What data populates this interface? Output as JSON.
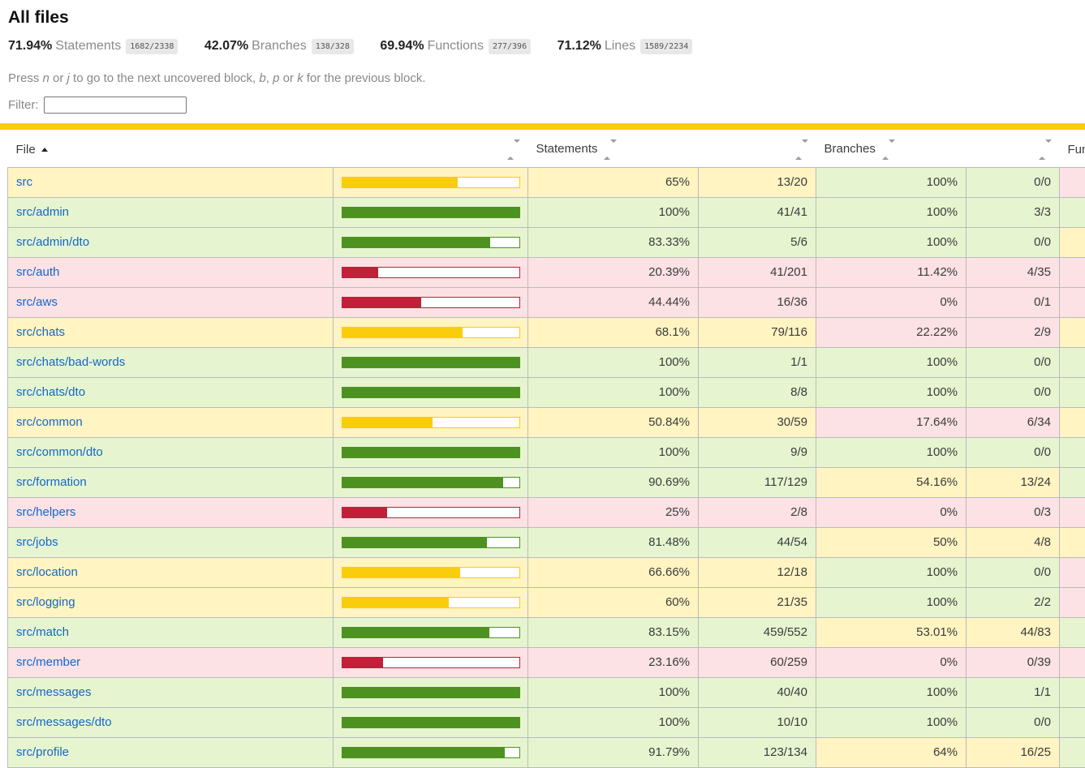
{
  "title": "All files",
  "summary": [
    {
      "pct": "71.94%",
      "label": "Statements",
      "fraction": "1682/2338"
    },
    {
      "pct": "42.07%",
      "label": "Branches",
      "fraction": "138/328"
    },
    {
      "pct": "69.94%",
      "label": "Functions",
      "fraction": "277/396"
    },
    {
      "pct": "71.12%",
      "label": "Lines",
      "fraction": "1589/2234"
    }
  ],
  "hint": {
    "parts": [
      "Press ",
      "n",
      " or ",
      "j",
      " to go to the next uncovered block, ",
      "b",
      ", ",
      "p",
      " or ",
      "k",
      " for the previous block."
    ]
  },
  "filter": {
    "label": "Filter:",
    "value": "",
    "placeholder": ""
  },
  "colors": {
    "status_line": "#F9CD0B",
    "bar_high": "#4D9221",
    "bar_medium": "#F9CD0B",
    "bar_low": "#C21F39",
    "row_high": "#E6F5D0",
    "row_medium": "#FFF4C2",
    "row_low": "#FCE1E5",
    "fraction_badge_bg": "#E8E8E8",
    "link_blue": "#1467C8"
  },
  "table": {
    "headers": {
      "file": "File",
      "statements": "Statements",
      "branches": "Branches",
      "functions": "Functions"
    },
    "rows": [
      {
        "file": "src",
        "cls": "medium",
        "bar_pct": 65,
        "statements": "65%",
        "statements_raw": "13/20",
        "branches_cls": "high",
        "branches": "100%",
        "branches_raw": "0/0",
        "functions_cls": "low"
      },
      {
        "file": "src/admin",
        "cls": "high",
        "bar_pct": 100,
        "statements": "100%",
        "statements_raw": "41/41",
        "branches_cls": "high",
        "branches": "100%",
        "branches_raw": "3/3",
        "functions_cls": "high"
      },
      {
        "file": "src/admin/dto",
        "cls": "high",
        "bar_pct": 83.33,
        "statements": "83.33%",
        "statements_raw": "5/6",
        "branches_cls": "high",
        "branches": "100%",
        "branches_raw": "0/0",
        "functions_cls": "medium"
      },
      {
        "file": "src/auth",
        "cls": "low",
        "bar_pct": 20.39,
        "statements": "20.39%",
        "statements_raw": "41/201",
        "branches_cls": "low",
        "branches": "11.42%",
        "branches_raw": "4/35",
        "functions_cls": "low"
      },
      {
        "file": "src/aws",
        "cls": "low",
        "bar_pct": 44.44,
        "statements": "44.44%",
        "statements_raw": "16/36",
        "branches_cls": "low",
        "branches": "0%",
        "branches_raw": "0/1",
        "functions_cls": "low"
      },
      {
        "file": "src/chats",
        "cls": "medium",
        "bar_pct": 68.1,
        "statements": "68.1%",
        "statements_raw": "79/116",
        "branches_cls": "low",
        "branches": "22.22%",
        "branches_raw": "2/9",
        "functions_cls": "medium"
      },
      {
        "file": "src/chats/bad-words",
        "cls": "high",
        "bar_pct": 100,
        "statements": "100%",
        "statements_raw": "1/1",
        "branches_cls": "high",
        "branches": "100%",
        "branches_raw": "0/0",
        "functions_cls": "high"
      },
      {
        "file": "src/chats/dto",
        "cls": "high",
        "bar_pct": 100,
        "statements": "100%",
        "statements_raw": "8/8",
        "branches_cls": "high",
        "branches": "100%",
        "branches_raw": "0/0",
        "functions_cls": "high"
      },
      {
        "file": "src/common",
        "cls": "medium",
        "bar_pct": 50.84,
        "statements": "50.84%",
        "statements_raw": "30/59",
        "branches_cls": "low",
        "branches": "17.64%",
        "branches_raw": "6/34",
        "functions_cls": "medium"
      },
      {
        "file": "src/common/dto",
        "cls": "high",
        "bar_pct": 100,
        "statements": "100%",
        "statements_raw": "9/9",
        "branches_cls": "high",
        "branches": "100%",
        "branches_raw": "0/0",
        "functions_cls": "high"
      },
      {
        "file": "src/formation",
        "cls": "high",
        "bar_pct": 90.69,
        "statements": "90.69%",
        "statements_raw": "117/129",
        "branches_cls": "medium",
        "branches": "54.16%",
        "branches_raw": "13/24",
        "functions_cls": "high"
      },
      {
        "file": "src/helpers",
        "cls": "low",
        "bar_pct": 25,
        "statements": "25%",
        "statements_raw": "2/8",
        "branches_cls": "low",
        "branches": "0%",
        "branches_raw": "0/3",
        "functions_cls": "low"
      },
      {
        "file": "src/jobs",
        "cls": "high",
        "bar_pct": 81.48,
        "statements": "81.48%",
        "statements_raw": "44/54",
        "branches_cls": "medium",
        "branches": "50%",
        "branches_raw": "4/8",
        "functions_cls": "medium"
      },
      {
        "file": "src/location",
        "cls": "medium",
        "bar_pct": 66.66,
        "statements": "66.66%",
        "statements_raw": "12/18",
        "branches_cls": "high",
        "branches": "100%",
        "branches_raw": "0/0",
        "functions_cls": "low"
      },
      {
        "file": "src/logging",
        "cls": "medium",
        "bar_pct": 60,
        "statements": "60%",
        "statements_raw": "21/35",
        "branches_cls": "high",
        "branches": "100%",
        "branches_raw": "2/2",
        "functions_cls": "low"
      },
      {
        "file": "src/match",
        "cls": "high",
        "bar_pct": 83.15,
        "statements": "83.15%",
        "statements_raw": "459/552",
        "branches_cls": "medium",
        "branches": "53.01%",
        "branches_raw": "44/83",
        "functions_cls": "high"
      },
      {
        "file": "src/member",
        "cls": "low",
        "bar_pct": 23.16,
        "statements": "23.16%",
        "statements_raw": "60/259",
        "branches_cls": "low",
        "branches": "0%",
        "branches_raw": "0/39",
        "functions_cls": "low"
      },
      {
        "file": "src/messages",
        "cls": "high",
        "bar_pct": 100,
        "statements": "100%",
        "statements_raw": "40/40",
        "branches_cls": "high",
        "branches": "100%",
        "branches_raw": "1/1",
        "functions_cls": "high"
      },
      {
        "file": "src/messages/dto",
        "cls": "high",
        "bar_pct": 100,
        "statements": "100%",
        "statements_raw": "10/10",
        "branches_cls": "high",
        "branches": "100%",
        "branches_raw": "0/0",
        "functions_cls": "high"
      },
      {
        "file": "src/profile",
        "cls": "high",
        "bar_pct": 91.79,
        "statements": "91.79%",
        "statements_raw": "123/134",
        "branches_cls": "medium",
        "branches": "64%",
        "branches_raw": "16/25",
        "functions_cls": "high"
      }
    ]
  }
}
